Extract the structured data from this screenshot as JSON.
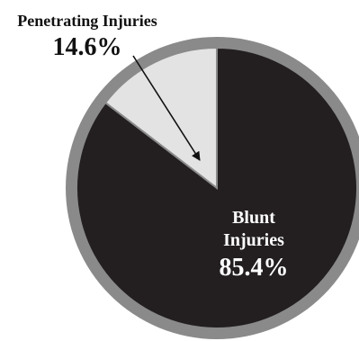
{
  "chart_data": {
    "type": "pie",
    "slices": [
      {
        "label_lines": [
          "Penetrating Injuries"
        ],
        "value_text": "14.6%",
        "value": 14.6,
        "color": "#e3e3e3"
      },
      {
        "label_lines": [
          "Blunt",
          "Injuries"
        ],
        "value_text": "85.4%",
        "value": 85.4,
        "color": "#231f20"
      }
    ],
    "ring_color": "#8a8a8a",
    "separator_color": "#8a8a8a",
    "background": "#ffffff",
    "legend": "none",
    "annotation": "arrow from Penetrating Injuries label into its slice"
  }
}
